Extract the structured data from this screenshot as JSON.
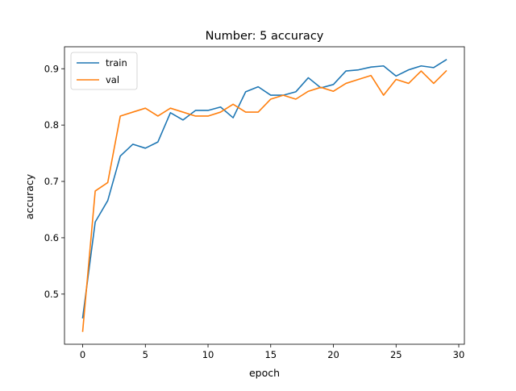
{
  "chart_data": {
    "type": "line",
    "title": "Number: 5 accuracy",
    "xlabel": "epoch",
    "ylabel": "accuracy",
    "xlim": [
      -1.45,
      30.45
    ],
    "ylim": [
      0.411,
      0.939
    ],
    "xticks": [
      0,
      5,
      10,
      15,
      20,
      25,
      30
    ],
    "yticks": [
      0.5,
      0.6,
      0.7,
      0.8,
      0.9
    ],
    "grid": false,
    "legend_position": "upper-left",
    "x": [
      0,
      1,
      2,
      3,
      4,
      5,
      6,
      7,
      8,
      9,
      10,
      11,
      12,
      13,
      14,
      15,
      16,
      17,
      18,
      19,
      20,
      21,
      22,
      23,
      24,
      25,
      26,
      27,
      28,
      29
    ],
    "series": [
      {
        "name": "train",
        "color": "#1f77b4",
        "values": [
          0.458,
          0.628,
          0.666,
          0.745,
          0.766,
          0.759,
          0.77,
          0.822,
          0.809,
          0.826,
          0.826,
          0.832,
          0.813,
          0.859,
          0.868,
          0.853,
          0.853,
          0.859,
          0.884,
          0.866,
          0.872,
          0.896,
          0.898,
          0.903,
          0.905,
          0.887,
          0.898,
          0.905,
          0.902,
          0.916
        ]
      },
      {
        "name": "val",
        "color": "#ff7f0e",
        "values": [
          0.434,
          0.683,
          0.698,
          0.816,
          0.823,
          0.83,
          0.816,
          0.83,
          0.823,
          0.816,
          0.816,
          0.823,
          0.837,
          0.823,
          0.823,
          0.846,
          0.853,
          0.846,
          0.86,
          0.867,
          0.86,
          0.874,
          0.881,
          0.888,
          0.853,
          0.881,
          0.874,
          0.896,
          0.874,
          0.896
        ]
      }
    ]
  }
}
